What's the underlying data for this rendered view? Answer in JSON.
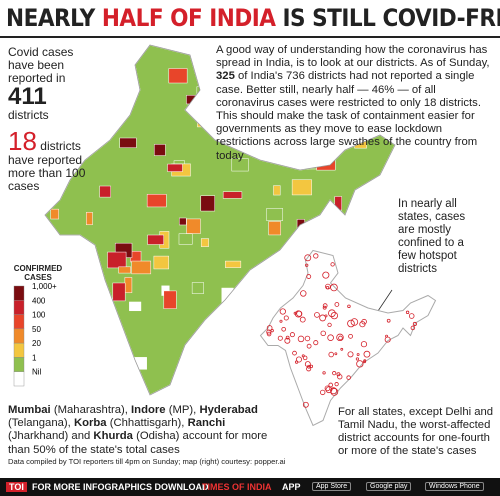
{
  "header": {
    "title_runs": [
      {
        "text": "NEARLY "
      },
      {
        "text": "HALF OF INDIA",
        "red": true
      },
      {
        "text": " IS STILL COVID-FREE"
      }
    ]
  },
  "stats": {
    "intro": "Covid cases have been reported in",
    "count": "411",
    "count_unit": "districts",
    "hot_count": "18",
    "hot_text": "districts have reported more than 100 cases"
  },
  "paragraph": [
    {
      "text": "A good way of understanding how the coronavirus has spread in India, is to look at our districts. As of Sunday, "
    },
    {
      "text": "325",
      "bold": true
    },
    {
      "text": " of India's 736 districts had not reported a single case. Better still, nearly half — 46% — of all coronavirus cases were restricted to only 18 districts. This should make the task of containment easier for governments as they move to ease lockdown restrictions across large swathes of the country from today"
    }
  ],
  "callout_top": "In nearly all states, cases are mostly confined to a few hotspot districts",
  "callout_bottom": "For all states, except Delhi and Tamil Nadu, the worst-affected district accounts for one-fourth or more of the state's cases",
  "legend": {
    "title": "CONFIRMED CASES",
    "labels": [
      "1,000+",
      "400",
      "100",
      "50",
      "20",
      "1",
      "Nil"
    ],
    "colors": [
      "#7a0c10",
      "#c8202a",
      "#e8452a",
      "#f08a2a",
      "#f3c640",
      "#8fc04f",
      "#ffffff"
    ]
  },
  "bottom_text": [
    {
      "text": "Mumbai",
      "bold": true
    },
    {
      "text": " (Maharashtra), "
    },
    {
      "text": "Indore",
      "bold": true
    },
    {
      "text": " (MP), "
    },
    {
      "text": "Hyderabad",
      "bold": true
    },
    {
      "text": " (Telangana), "
    },
    {
      "text": "Korba",
      "bold": true
    },
    {
      "text": " (Chhattisgarh), "
    },
    {
      "text": "Ranchi",
      "bold": true
    },
    {
      "text": " (Jharkhand) and "
    },
    {
      "text": "Khurda",
      "bold": true
    },
    {
      "text": " (Odisha) account for more than 50% of the state's total cases"
    }
  ],
  "note": "Data compiled by TOI reporters till 4pm on Sunday; map (right) courtesy: popper.ai",
  "footer": {
    "logo": "TOI",
    "text": "FOR MORE  INFOGRAPHICS DOWNLOAD",
    "brand": "TIMES OF INDIA",
    "app": "APP",
    "store1": "App Store",
    "store2": "Google play",
    "store3": "Windows Phone"
  }
}
